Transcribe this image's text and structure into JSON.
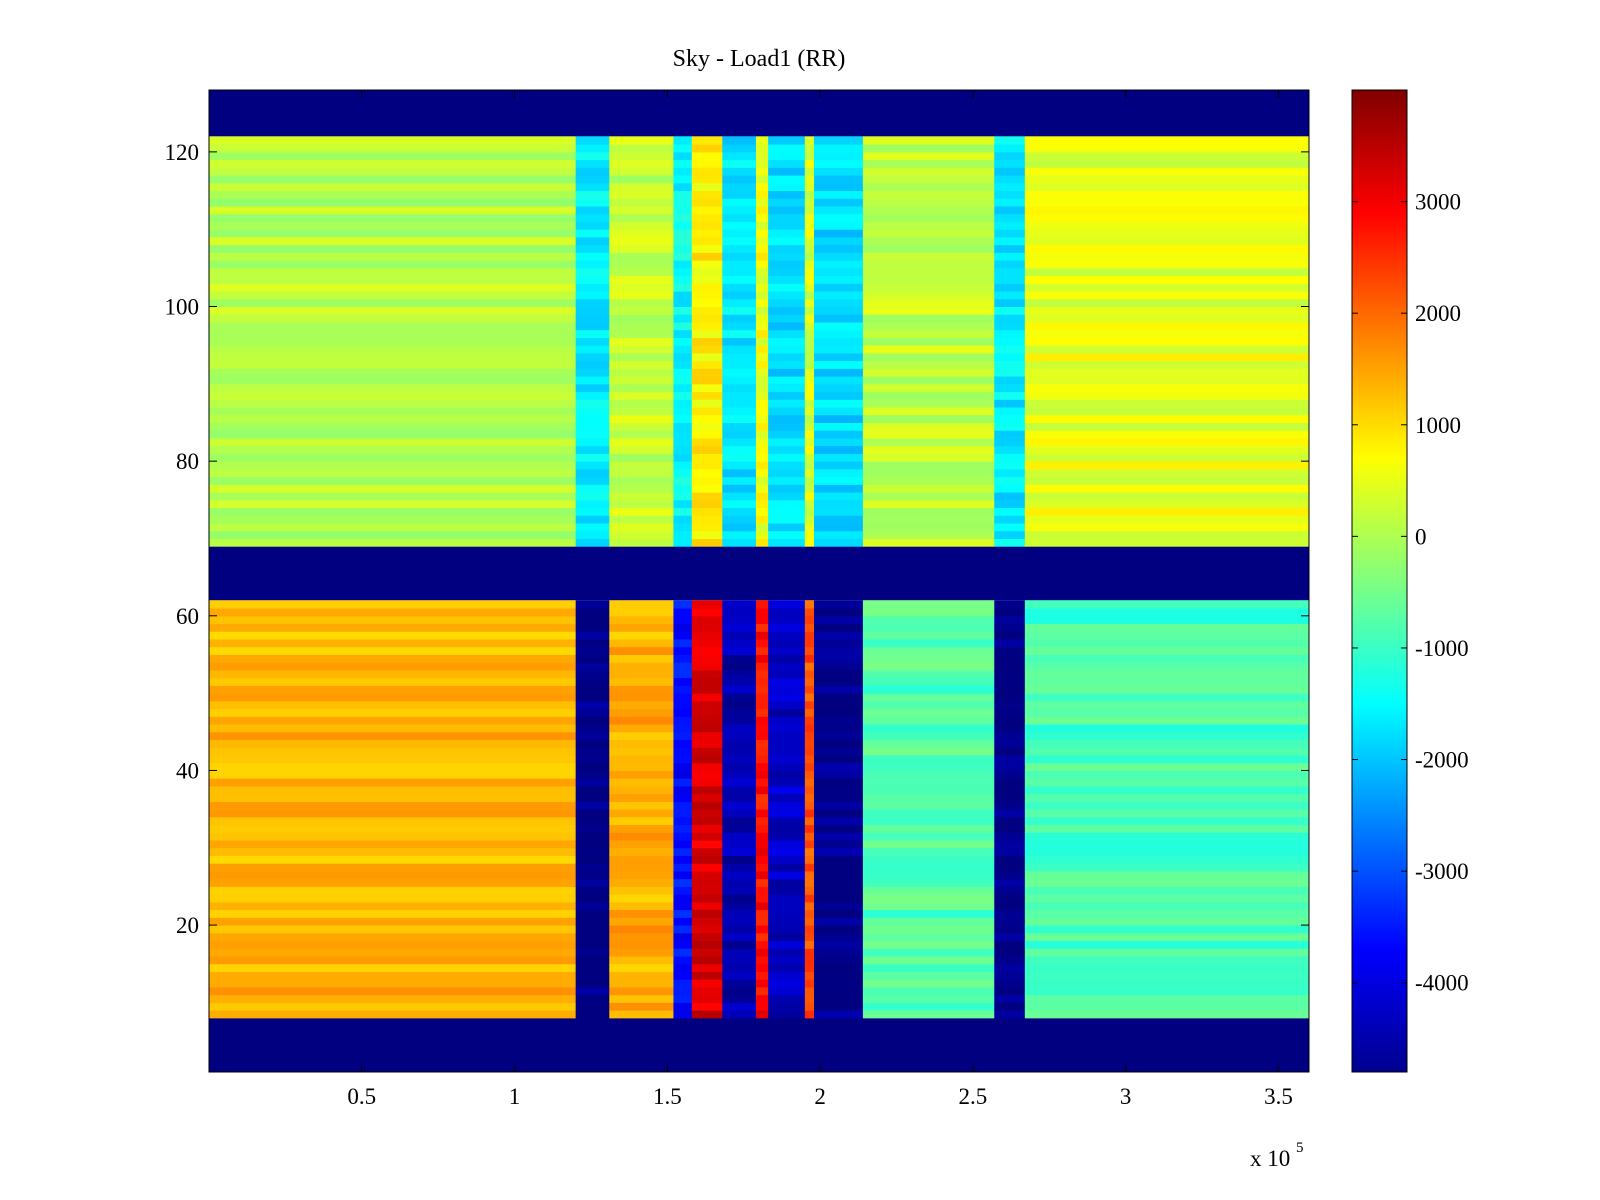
{
  "chart_data": {
    "type": "heatmap",
    "title": "Sky - Load1 (RR)",
    "xlabel": "",
    "ylabel": "",
    "x_multiplier_label": "x 10",
    "x_multiplier_exponent": "5",
    "xlim": [
      0.0,
      3.6
    ],
    "ylim": [
      1,
      128
    ],
    "x_ticks": [
      0.5,
      1,
      1.5,
      2,
      2.5,
      3,
      3.5
    ],
    "x_tick_labels": [
      "0.5",
      "1",
      "1.5",
      "2",
      "2.5",
      "3",
      "3.5"
    ],
    "y_ticks": [
      20,
      40,
      60,
      80,
      100,
      120
    ],
    "y_tick_labels": [
      "20",
      "40",
      "60",
      "80",
      "100",
      "120"
    ],
    "colorbar": {
      "colormap": "jet",
      "range": [
        -4800,
        4000
      ],
      "ticks": [
        3000,
        2000,
        1000,
        0,
        -1000,
        -2000,
        -3000,
        -4000
      ],
      "tick_labels": [
        "3000",
        "2000",
        "1000",
        "0",
        "-1000",
        "-2000",
        "-3000",
        "-4000"
      ]
    },
    "masked_rows": [
      [
        1,
        8
      ],
      [
        62,
        69
      ],
      [
        122,
        128
      ]
    ],
    "lower_band": {
      "rows": [
        8,
        62
      ],
      "base_segments": [
        {
          "x0": 0.0,
          "x1": 1.2,
          "value": 1300
        },
        {
          "x0": 1.2,
          "x1": 1.31,
          "value": -4800
        },
        {
          "x0": 1.31,
          "x1": 1.52,
          "value": 1400
        },
        {
          "x0": 1.52,
          "x1": 1.58,
          "value": -3600
        },
        {
          "x0": 1.58,
          "x1": 1.68,
          "value": 3200
        },
        {
          "x0": 1.68,
          "x1": 1.79,
          "value": -4400
        },
        {
          "x0": 1.79,
          "x1": 1.83,
          "value": 2800
        },
        {
          "x0": 1.83,
          "x1": 1.95,
          "value": -4200
        },
        {
          "x0": 1.95,
          "x1": 1.98,
          "value": 2200
        },
        {
          "x0": 1.98,
          "x1": 2.14,
          "value": -4700
        },
        {
          "x0": 2.14,
          "x1": 2.57,
          "value": -800
        },
        {
          "x0": 2.57,
          "x1": 2.67,
          "value": -4800
        },
        {
          "x0": 2.67,
          "x1": 3.6,
          "value": -900
        }
      ]
    },
    "upper_band": {
      "rows": [
        69,
        122
      ],
      "base_segments": [
        {
          "x0": 0.0,
          "x1": 1.2,
          "value": 100
        },
        {
          "x0": 1.2,
          "x1": 1.31,
          "value": -1600
        },
        {
          "x0": 1.31,
          "x1": 1.52,
          "value": 200
        },
        {
          "x0": 1.52,
          "x1": 1.58,
          "value": -1500
        },
        {
          "x0": 1.58,
          "x1": 1.68,
          "value": 800
        },
        {
          "x0": 1.68,
          "x1": 1.79,
          "value": -1700
        },
        {
          "x0": 1.79,
          "x1": 1.83,
          "value": 600
        },
        {
          "x0": 1.83,
          "x1": 1.95,
          "value": -1800
        },
        {
          "x0": 1.95,
          "x1": 1.98,
          "value": 400
        },
        {
          "x0": 1.98,
          "x1": 2.14,
          "value": -1800
        },
        {
          "x0": 2.14,
          "x1": 2.57,
          "value": 200
        },
        {
          "x0": 2.57,
          "x1": 2.67,
          "value": -1700
        },
        {
          "x0": 2.67,
          "x1": 3.6,
          "value": 500
        }
      ]
    }
  }
}
